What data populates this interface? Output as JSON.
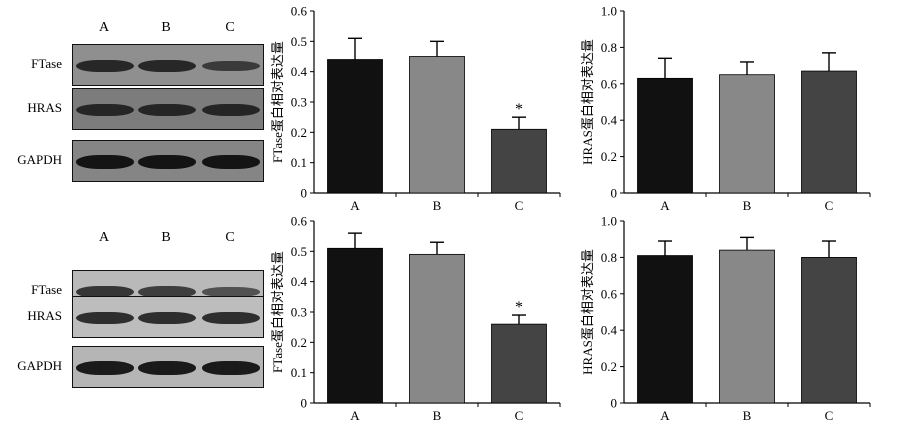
{
  "blots": [
    {
      "lanes": [
        "A",
        "B",
        "C"
      ],
      "rows": [
        {
          "label": "FTase",
          "bg": "#8f8f8f",
          "band": "#1e1e1e",
          "intensity": [
            0.85,
            0.85,
            0.55
          ]
        },
        {
          "label": "HRAS",
          "bg": "#7c7c7c",
          "band": "#1a1a1a",
          "intensity": [
            0.8,
            0.8,
            0.8
          ]
        },
        {
          "label": "GAPDH",
          "bg": "#858585",
          "band": "#111111",
          "intensity": [
            0.95,
            0.95,
            0.95
          ]
        }
      ]
    },
    {
      "lanes": [
        "A",
        "B",
        "C"
      ],
      "rows": [
        {
          "label": "FTase",
          "bg": "#b9b9b9",
          "band": "#2a2a2a",
          "intensity": [
            0.85,
            0.75,
            0.5
          ]
        },
        {
          "label": "HRAS",
          "bg": "#bdbdbd",
          "band": "#222222",
          "intensity": [
            0.85,
            0.85,
            0.85
          ]
        },
        {
          "label": "GAPDH",
          "bg": "#b5b5b5",
          "band": "#151515",
          "intensity": [
            0.95,
            0.95,
            0.95
          ]
        }
      ]
    }
  ],
  "chart_data": [
    {
      "type": "bar",
      "categories": [
        "A",
        "B",
        "C"
      ],
      "values": [
        0.44,
        0.45,
        0.21
      ],
      "errors": [
        0.07,
        0.05,
        0.04
      ],
      "colors": [
        "#111111",
        "#888888",
        "#444444"
      ],
      "significance": [
        "",
        "",
        "*"
      ],
      "ylabel": "FTase蛋白相对表达量",
      "ylim": [
        0,
        0.6
      ],
      "yticks": [
        "0",
        "0.1",
        "0.2",
        "0.3",
        "0.4",
        "0.5",
        "0.6"
      ]
    },
    {
      "type": "bar",
      "categories": [
        "A",
        "B",
        "C"
      ],
      "values": [
        0.63,
        0.65,
        0.67
      ],
      "errors": [
        0.11,
        0.07,
        0.1
      ],
      "colors": [
        "#111111",
        "#888888",
        "#444444"
      ],
      "significance": [
        "",
        "",
        ""
      ],
      "ylabel": "HRAS蛋白相对表达量",
      "ylim": [
        0,
        1.0
      ],
      "yticks": [
        "0",
        "0.2",
        "0.4",
        "0.6",
        "0.8",
        "1.0"
      ]
    },
    {
      "type": "bar",
      "categories": [
        "A",
        "B",
        "C"
      ],
      "values": [
        0.51,
        0.49,
        0.26
      ],
      "errors": [
        0.05,
        0.04,
        0.03
      ],
      "colors": [
        "#111111",
        "#888888",
        "#444444"
      ],
      "significance": [
        "",
        "",
        "*"
      ],
      "ylabel": "FTase蛋白相对表达量",
      "ylim": [
        0,
        0.6
      ],
      "yticks": [
        "0",
        "0.1",
        "0.2",
        "0.3",
        "0.4",
        "0.5",
        "0.6"
      ]
    },
    {
      "type": "bar",
      "categories": [
        "A",
        "B",
        "C"
      ],
      "values": [
        0.81,
        0.84,
        0.8
      ],
      "errors": [
        0.08,
        0.07,
        0.09
      ],
      "colors": [
        "#111111",
        "#888888",
        "#444444"
      ],
      "significance": [
        "",
        "",
        ""
      ],
      "ylabel": "HRAS蛋白相对表达量",
      "ylim": [
        0,
        1.0
      ],
      "yticks": [
        "0",
        "0.2",
        "0.4",
        "0.6",
        "0.8",
        "1.0"
      ]
    }
  ]
}
